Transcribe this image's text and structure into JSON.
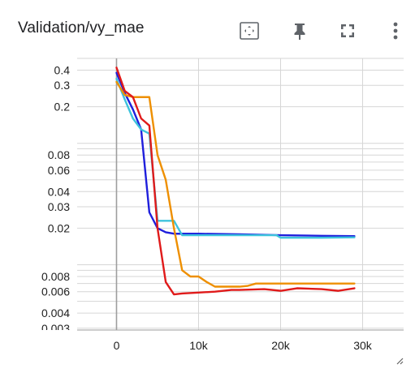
{
  "card": {
    "title": "Validation/vy_mae"
  },
  "toolbar": {
    "fit_icon": "fit-to-data-icon",
    "pin_icon": "pin-icon",
    "fullscreen_icon": "fullscreen-icon",
    "more_icon": "more-vert-icon"
  },
  "chart_data": {
    "type": "line",
    "title": "Validation/vy_mae",
    "xlabel": "",
    "ylabel": "",
    "y_scale": "log",
    "xlim": [
      -4800,
      35000
    ],
    "ylim": [
      0.0029,
      0.5
    ],
    "grid": true,
    "x_ticks": [
      {
        "value": 0,
        "label": "0"
      },
      {
        "value": 10000,
        "label": "10k"
      },
      {
        "value": 20000,
        "label": "20k"
      },
      {
        "value": 30000,
        "label": "30k"
      }
    ],
    "y_ticks": [
      {
        "value": 0.4,
        "label": "0.4"
      },
      {
        "value": 0.3,
        "label": "0.3"
      },
      {
        "value": 0.2,
        "label": "0.2"
      },
      {
        "value": 0.08,
        "label": "0.08"
      },
      {
        "value": 0.06,
        "label": "0.06"
      },
      {
        "value": 0.04,
        "label": "0.04"
      },
      {
        "value": 0.03,
        "label": "0.03"
      },
      {
        "value": 0.02,
        "label": "0.02"
      },
      {
        "value": 0.008,
        "label": "0.008"
      },
      {
        "value": 0.006,
        "label": "0.006"
      },
      {
        "value": 0.004,
        "label": "0.004"
      },
      {
        "value": 0.003,
        "label": "0.003"
      }
    ],
    "y_minor_gridlines": [
      0.5,
      0.1,
      0.09,
      0.07,
      0.05,
      0.01,
      0.009,
      0.007,
      0.005
    ],
    "series": [
      {
        "color": "#1f1fdc",
        "x": [
          0,
          1000,
          2000,
          3000,
          4000,
          5000,
          6000,
          7000,
          8000,
          10000,
          15000,
          20000,
          25000,
          29000
        ],
        "y": [
          0.38,
          0.26,
          0.19,
          0.13,
          0.027,
          0.02,
          0.0185,
          0.018,
          0.018,
          0.018,
          0.0178,
          0.0175,
          0.0173,
          0.0172
        ]
      },
      {
        "color": "#3ec3dc",
        "x": [
          0,
          1000,
          2000,
          3000,
          4000,
          5000,
          6000,
          7000,
          8000,
          10000,
          15000,
          19500,
          20000,
          25000,
          29000
        ],
        "y": [
          0.34,
          0.23,
          0.16,
          0.13,
          0.12,
          0.023,
          0.023,
          0.023,
          0.0175,
          0.0175,
          0.0175,
          0.0175,
          0.0167,
          0.0167,
          0.0168
        ]
      },
      {
        "color": "#ee8f00",
        "x": [
          0,
          1000,
          2000,
          3000,
          4000,
          5000,
          6000,
          7000,
          8000,
          9000,
          10000,
          11000,
          12000,
          15000,
          16000,
          17000,
          20000,
          25000,
          29000
        ],
        "y": [
          0.32,
          0.25,
          0.24,
          0.24,
          0.24,
          0.08,
          0.05,
          0.02,
          0.009,
          0.008,
          0.008,
          0.0072,
          0.0066,
          0.0066,
          0.0067,
          0.007,
          0.007,
          0.007,
          0.007
        ]
      },
      {
        "color": "#e01a1a",
        "x": [
          0,
          1000,
          2000,
          3000,
          4000,
          5000,
          6000,
          7000,
          8000,
          10000,
          12000,
          14000,
          15000,
          18000,
          20000,
          22000,
          25000,
          27000,
          29000
        ],
        "y": [
          0.42,
          0.27,
          0.24,
          0.16,
          0.14,
          0.02,
          0.0072,
          0.0057,
          0.0058,
          0.0059,
          0.006,
          0.0062,
          0.0062,
          0.0063,
          0.0061,
          0.0064,
          0.0063,
          0.0061,
          0.0064
        ]
      }
    ]
  }
}
